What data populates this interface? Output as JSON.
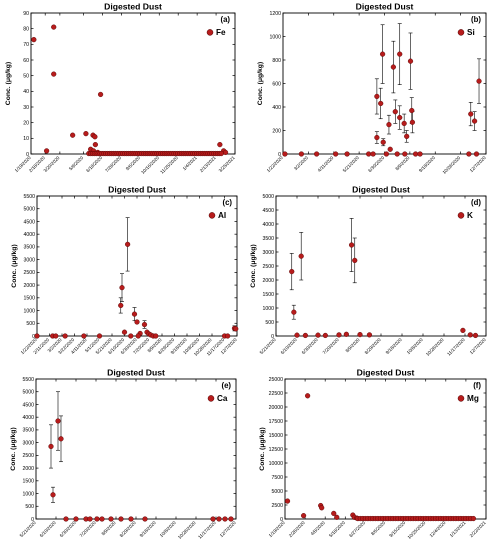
{
  "figure": {
    "accent_color": "#b71c1c",
    "marker_outline": "#4a0000"
  },
  "chart_data": [
    {
      "id": "a",
      "type": "scatter",
      "title": "Digested Dust",
      "panel_label": "(a)",
      "legend": "Fe",
      "ylabel": "Conc. (μg/kg)",
      "ylim": [
        0,
        90
      ],
      "yticks": [
        0,
        10,
        20,
        30,
        40,
        50,
        60,
        70,
        80,
        90
      ],
      "xlim": [
        "2020-01-19",
        "2021-03-25"
      ],
      "xticks": [
        "1/19/2020",
        "2/18/2020",
        "3/20/2020",
        "5/9/2020",
        "6/18/2020",
        "7/28/2020",
        "9/6/2020",
        "10/16/2020",
        "11/25/2020",
        "1/4/2021",
        "2/13/2021",
        "3/25/2021"
      ],
      "points": [
        {
          "x": "2020-01-25",
          "y": 73
        },
        {
          "x": "2020-02-21",
          "y": 2
        },
        {
          "x": "2020-03-07",
          "y": 81
        },
        {
          "x": "2020-03-07",
          "y": 51
        },
        {
          "x": "2020-04-16",
          "y": 12
        },
        {
          "x": "2020-05-14",
          "y": 13
        },
        {
          "x": "2020-05-29",
          "y": 12
        },
        {
          "x": "2020-06-02",
          "y": 11
        },
        {
          "x": "2020-06-14",
          "y": 38
        },
        {
          "x": "2020-05-24",
          "y": 3
        },
        {
          "x": "2020-05-28",
          "y": 1
        },
        {
          "x": "2020-05-30",
          "y": 2
        },
        {
          "x": "2020-06-03",
          "y": 6
        },
        {
          "x": "2020-06-08",
          "y": 1
        },
        {
          "x": "2021-02-21",
          "y": 6
        },
        {
          "x": "2021-03-01",
          "y": 2
        },
        {
          "x": "2021-03-05",
          "y": 1
        }
      ],
      "baseline": {
        "y": 0.3,
        "from": "2020-05-20",
        "to": "2021-02-25",
        "step_days": 4
      }
    },
    {
      "id": "b",
      "type": "scatter",
      "title": "Digested Dust",
      "panel_label": "(b)",
      "legend": "Si",
      "ylabel": "Conc. (μg/kg)",
      "ylim": [
        0,
        1200
      ],
      "yticks": [
        0,
        200,
        400,
        600,
        800,
        1000,
        1200
      ],
      "xlim": [
        "2020-01-22",
        "2020-12-07"
      ],
      "xticks": [
        "1/22/2020",
        "3/2/2020",
        "4/11/2020",
        "5/21/2020",
        "6/30/2020",
        "8/9/2020",
        "9/18/2020",
        "10/28/2020",
        "12/7/2020"
      ],
      "points": [
        {
          "x": "2020-06-18",
          "y": 140,
          "err": 50
        },
        {
          "x": "2020-06-18",
          "y": 490,
          "err": 150
        },
        {
          "x": "2020-06-24",
          "y": 430,
          "err": 130
        },
        {
          "x": "2020-06-27",
          "y": 850,
          "err": 250
        },
        {
          "x": "2020-06-28",
          "y": 100,
          "err": 30
        },
        {
          "x": "2020-07-07",
          "y": 250,
          "err": 80
        },
        {
          "x": "2020-07-09",
          "y": 40
        },
        {
          "x": "2020-07-14",
          "y": 740,
          "err": 220
        },
        {
          "x": "2020-07-17",
          "y": 360,
          "err": 100
        },
        {
          "x": "2020-07-24",
          "y": 850,
          "err": 260
        },
        {
          "x": "2020-07-24",
          "y": 310,
          "err": 100
        },
        {
          "x": "2020-07-31",
          "y": 260,
          "err": 80
        },
        {
          "x": "2020-08-04",
          "y": 150,
          "err": 50
        },
        {
          "x": "2020-08-10",
          "y": 790,
          "err": 240
        },
        {
          "x": "2020-08-12",
          "y": 370,
          "err": 110
        },
        {
          "x": "2020-08-13",
          "y": 270,
          "err": 90
        },
        {
          "x": "2020-11-13",
          "y": 340,
          "err": 100
        },
        {
          "x": "2020-11-19",
          "y": 280,
          "err": 80
        },
        {
          "x": "2020-11-26",
          "y": 620,
          "err": 190
        },
        {
          "x": "2020-01-25",
          "y": 0
        },
        {
          "x": "2020-02-20",
          "y": 0
        },
        {
          "x": "2020-03-15",
          "y": 0
        },
        {
          "x": "2020-04-14",
          "y": 0
        },
        {
          "x": "2020-05-02",
          "y": 0
        },
        {
          "x": "2020-06-05",
          "y": 0
        },
        {
          "x": "2020-06-12",
          "y": 0
        },
        {
          "x": "2020-07-03",
          "y": 0
        },
        {
          "x": "2020-07-20",
          "y": 0
        },
        {
          "x": "2020-08-01",
          "y": 0
        },
        {
          "x": "2020-08-18",
          "y": 0
        },
        {
          "x": "2020-08-25",
          "y": 0
        },
        {
          "x": "2020-11-10",
          "y": 0
        },
        {
          "x": "2020-11-22",
          "y": 0
        }
      ]
    },
    {
      "id": "c",
      "type": "scatter",
      "title": "Digested Dust",
      "panel_label": "(c)",
      "legend": "Al",
      "ylabel": "Conc. (μg/kg)",
      "ylim": [
        0,
        5500
      ],
      "yticks": [
        0,
        500,
        1000,
        1500,
        2000,
        2500,
        3000,
        3500,
        4000,
        4500,
        5000,
        5500
      ],
      "xlim": [
        "2020-01-22",
        "2020-12-07"
      ],
      "xticks": [
        "1/22/2020",
        "2/11/2020",
        "3/2/2020",
        "3/22/2020",
        "4/11/2020",
        "5/1/2020",
        "5/21/2020",
        "6/10/2020",
        "6/30/2020",
        "7/20/2020",
        "8/9/2020",
        "8/29/2020",
        "9/18/2020",
        "10/8/2020",
        "10/28/2020",
        "11/17/2020",
        "12/7/2020"
      ],
      "points": [
        {
          "x": "2020-06-04",
          "y": 1200,
          "err": 300
        },
        {
          "x": "2020-06-06",
          "y": 1900,
          "err": 550
        },
        {
          "x": "2020-06-10",
          "y": 150
        },
        {
          "x": "2020-06-15",
          "y": 3600,
          "err": 1050
        },
        {
          "x": "2020-06-26",
          "y": 860,
          "err": 260
        },
        {
          "x": "2020-06-30",
          "y": 550
        },
        {
          "x": "2020-07-05",
          "y": 100
        },
        {
          "x": "2020-07-12",
          "y": 450,
          "err": 150
        },
        {
          "x": "2020-07-16",
          "y": 150
        },
        {
          "x": "2020-07-19",
          "y": 80
        },
        {
          "x": "2020-07-22",
          "y": 40
        },
        {
          "x": "2020-12-03",
          "y": 300,
          "err": 100
        },
        {
          "x": "2020-12-05",
          "y": 280
        },
        {
          "x": "2020-01-22",
          "y": 0
        },
        {
          "x": "2020-02-16",
          "y": 0
        },
        {
          "x": "2020-02-21",
          "y": 0
        },
        {
          "x": "2020-03-07",
          "y": 0
        },
        {
          "x": "2020-04-06",
          "y": 0
        },
        {
          "x": "2020-05-01",
          "y": 0
        },
        {
          "x": "2020-06-20",
          "y": 0
        },
        {
          "x": "2020-07-02",
          "y": 0
        },
        {
          "x": "2020-07-26",
          "y": 0
        },
        {
          "x": "2020-07-30",
          "y": 0
        },
        {
          "x": "2020-11-17",
          "y": 0
        },
        {
          "x": "2020-11-22",
          "y": 0
        }
      ]
    },
    {
      "id": "d",
      "type": "scatter",
      "title": "Digested Dust",
      "panel_label": "(d)",
      "legend": "K",
      "ylabel": "Conc. (μg/kg)",
      "ylim": [
        0,
        5000
      ],
      "yticks": [
        0,
        500,
        1000,
        1500,
        2000,
        2500,
        3000,
        3500,
        4000,
        4500,
        5000
      ],
      "xlim": [
        "2020-05-21",
        "2020-12-07"
      ],
      "xticks": [
        "5/21/2020",
        "6/10/2020",
        "6/30/2020",
        "7/20/2020",
        "8/9/2020",
        "8/29/2020",
        "9/18/2020",
        "10/8/2020",
        "10/28/2020",
        "11/17/2020",
        "12/7/2020"
      ],
      "points": [
        {
          "x": "2020-06-05",
          "y": 2300,
          "err": 650
        },
        {
          "x": "2020-06-07",
          "y": 850,
          "err": 250
        },
        {
          "x": "2020-06-14",
          "y": 2850,
          "err": 850
        },
        {
          "x": "2020-08-01",
          "y": 3250,
          "err": 950
        },
        {
          "x": "2020-08-04",
          "y": 2700,
          "err": 800
        },
        {
          "x": "2020-06-10",
          "y": 30
        },
        {
          "x": "2020-06-18",
          "y": 20
        },
        {
          "x": "2020-06-30",
          "y": 30
        },
        {
          "x": "2020-07-07",
          "y": 20
        },
        {
          "x": "2020-07-20",
          "y": 40
        },
        {
          "x": "2020-07-27",
          "y": 60
        },
        {
          "x": "2020-08-09",
          "y": 50
        },
        {
          "x": "2020-08-18",
          "y": 40
        },
        {
          "x": "2020-11-15",
          "y": 200
        },
        {
          "x": "2020-11-22",
          "y": 40
        },
        {
          "x": "2020-11-27",
          "y": 20
        }
      ]
    },
    {
      "id": "e",
      "type": "scatter",
      "title": "Digested Dust",
      "panel_label": "(e)",
      "legend": "Ca",
      "ylabel": "Conc. (μg/kg)",
      "ylim": [
        0,
        5500
      ],
      "yticks": [
        0,
        500,
        1000,
        1500,
        2000,
        2500,
        3000,
        3500,
        4000,
        4500,
        5000,
        5500
      ],
      "xlim": [
        "2020-05-21",
        "2020-12-07"
      ],
      "xticks": [
        "5/21/2020",
        "6/10/2020",
        "6/30/2020",
        "7/20/2020",
        "8/9/2020",
        "8/29/2020",
        "9/18/2020",
        "10/8/2020",
        "10/28/2020",
        "11/17/2020",
        "12/7/2020"
      ],
      "points": [
        {
          "x": "2020-06-05",
          "y": 2850,
          "err": 850
        },
        {
          "x": "2020-06-07",
          "y": 950,
          "err": 300
        },
        {
          "x": "2020-06-12",
          "y": 3850,
          "err": 1150
        },
        {
          "x": "2020-06-15",
          "y": 3150,
          "err": 900
        },
        {
          "x": "2020-06-20",
          "y": 0
        },
        {
          "x": "2020-06-30",
          "y": 0
        },
        {
          "x": "2020-07-10",
          "y": 0
        },
        {
          "x": "2020-07-14",
          "y": 0
        },
        {
          "x": "2020-07-21",
          "y": 0
        },
        {
          "x": "2020-07-26",
          "y": 0
        },
        {
          "x": "2020-08-04",
          "y": 0
        },
        {
          "x": "2020-08-14",
          "y": 0
        },
        {
          "x": "2020-08-24",
          "y": 0
        },
        {
          "x": "2020-09-07",
          "y": 0
        },
        {
          "x": "2020-11-14",
          "y": 0
        },
        {
          "x": "2020-11-20",
          "y": 0
        },
        {
          "x": "2020-11-26",
          "y": 0
        },
        {
          "x": "2020-12-02",
          "y": 0
        }
      ]
    },
    {
      "id": "f",
      "type": "scatter",
      "title": "Digested Dust",
      "panel_label": "(f)",
      "legend": "Mg",
      "ylabel": "Conc. (μg/kg)",
      "ylim": [
        0,
        25000
      ],
      "yticks": [
        0,
        2500,
        5000,
        7500,
        10000,
        12500,
        15000,
        17500,
        20000,
        22500,
        25000
      ],
      "xlim": [
        "2020-01-19",
        "2021-02-22"
      ],
      "xticks": [
        "1/19/2020",
        "2/28/2020",
        "4/8/2020",
        "5/18/2020",
        "6/27/2020",
        "8/6/2020",
        "9/15/2020",
        "10/25/2020",
        "12/4/2020",
        "1/13/2021",
        "2/22/2021"
      ],
      "points": [
        {
          "x": "2020-01-24",
          "y": 3200
        },
        {
          "x": "2020-02-25",
          "y": 600
        },
        {
          "x": "2020-03-04",
          "y": 22000
        },
        {
          "x": "2020-03-30",
          "y": 2400
        },
        {
          "x": "2020-04-01",
          "y": 2000
        },
        {
          "x": "2020-04-25",
          "y": 1000
        },
        {
          "x": "2020-05-01",
          "y": 300
        },
        {
          "x": "2020-06-02",
          "y": 700
        },
        {
          "x": "2020-06-05",
          "y": 300
        },
        {
          "x": "2020-06-10",
          "y": 150
        }
      ],
      "baseline": {
        "y": 80,
        "from": "2020-06-12",
        "to": "2021-01-30",
        "step_days": 5
      }
    }
  ]
}
